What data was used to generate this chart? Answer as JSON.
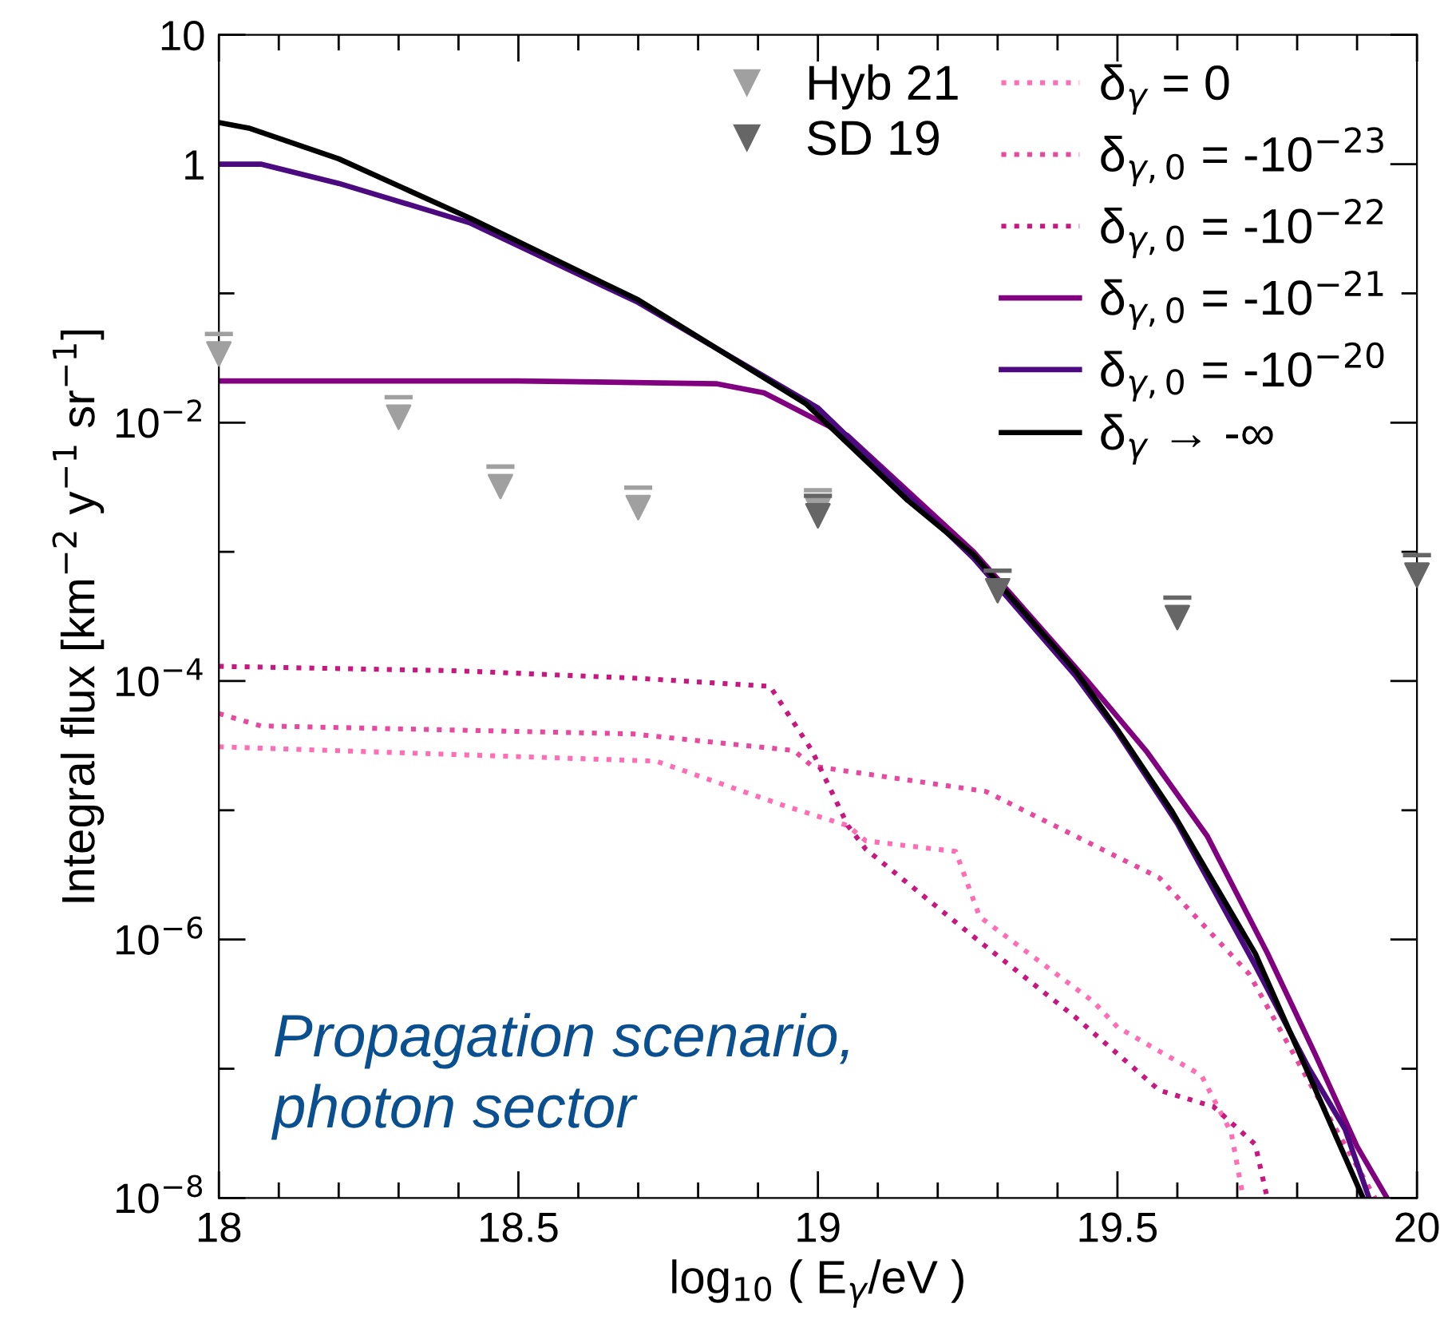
{
  "chart_data": {
    "type": "line",
    "xlabel": "log$_{10}$ ( E$_{γ}$/eV )",
    "ylabel": "Integral flux [km$^{−2}$ y$^{−1}$ sr$^{−1}$]",
    "annotations": [
      "Propagation scenario,\nphoton sector"
    ],
    "log": "y",
    "xlim": [
      18,
      20
    ],
    "xticks": [
      18,
      {
        "value": 18.1,
        "label": null
      },
      {
        "value": 18.2,
        "label": null
      },
      {
        "value": 18.3,
        "label": null
      },
      {
        "value": 18.4,
        "label": null
      },
      18.5,
      {
        "value": 18.6,
        "label": null
      },
      {
        "value": 18.7,
        "label": null
      },
      {
        "value": 18.8,
        "label": null
      },
      {
        "value": 18.9,
        "label": null
      },
      19,
      {
        "value": 19.1,
        "label": null
      },
      {
        "value": 19.2,
        "label": null
      },
      {
        "value": 19.3,
        "label": null
      },
      {
        "value": 19.4,
        "label": null
      },
      19.5,
      {
        "value": 19.6,
        "label": null
      },
      {
        "value": 19.7,
        "label": null
      },
      {
        "value": 19.8,
        "label": null
      },
      {
        "value": 19.9,
        "label": null
      },
      20
    ],
    "ylim": [
      1e-08,
      10
    ],
    "yticks": [
      {
        "value": 1e-08,
        "label": "10$^{−8}$"
      },
      {
        "value": 1e-07,
        "label": null
      },
      {
        "value": 1e-06,
        "label": "10$^{−6}$"
      },
      {
        "value": 1e-05,
        "label": null
      },
      {
        "value": 0.0001,
        "label": "10$^{−4}$"
      },
      {
        "value": 0.001,
        "label": null
      },
      {
        "value": 0.01,
        "label": "10$^{−2}$"
      },
      {
        "value": 0.1,
        "label": null
      },
      1,
      10
    ],
    "grid": false,
    "legend": "top right",
    "series": [
      {
        "name": "Hyb 21",
        "type": "scatter",
        "marker": "triangle",
        "color": "#a0a0a0",
        "x": [
          18,
          18.3,
          18.47,
          18.7,
          19.0
        ],
        "values": [
          0.034,
          0.011,
          0.0032,
          0.0022,
          0.0021
        ]
      },
      {
        "name": "SD 19",
        "type": "scatter",
        "marker": "triangle",
        "color": "#666666",
        "x": [
          19.0,
          19.3,
          19.6,
          20.0
        ],
        "values": [
          0.0019,
          0.0005,
          0.00031,
          0.00066
        ]
      },
      {
        "name": "δ$_{γ}$ = 0",
        "line_style": "dotted",
        "color": "#ff6eb4",
        "x": [
          18,
          18.73,
          18.94,
          19.05,
          19.08,
          19.23,
          19.27,
          19.46,
          19.5,
          19.64,
          19.69,
          19.71
        ],
        "values": [
          3.1e-05,
          2.4e-05,
          1.1e-05,
          7.6e-06,
          5.8e-06,
          4.8e-06,
          1.5e-06,
          3.3e-07,
          2.1e-07,
          8.9e-08,
          3.2e-08,
          1e-08
        ]
      },
      {
        "name": "δ$_{γ,0}$ = -10$^{−23}$",
        "line_style": "dotted",
        "color": "#e8489e",
        "x": [
          18,
          18.07,
          18.69,
          18.96,
          18.99,
          19.28,
          19.57,
          19.72,
          19.82,
          19.93
        ],
        "values": [
          5.6e-05,
          4.5e-05,
          3.9e-05,
          2.9e-05,
          2.2e-05,
          1.4e-05,
          3e-06,
          5.4e-07,
          7.9e-08,
          1e-08
        ]
      },
      {
        "name": "δ$_{γ,0}$ = -10$^{−22}$",
        "line_style": "dotted",
        "color": "#c8177f",
        "x": [
          18,
          18.4,
          18.7,
          18.92,
          18.99,
          19.05,
          19.08,
          19.26,
          19.43,
          19.57,
          19.66,
          19.73,
          19.75
        ],
        "values": [
          0.00013,
          0.00012,
          0.000105,
          9.1e-05,
          2.9e-05,
          7.6e-06,
          5e-06,
          1.05e-06,
          2.5e-07,
          6.8e-08,
          5.1e-08,
          2.6e-08,
          1e-08
        ]
      },
      {
        "name": "δ$_{γ,0}$ = -10$^{−21}$",
        "line_style": "solid",
        "color": "#800080",
        "x": [
          18,
          18.5,
          18.83,
          18.91,
          19.05,
          19.26,
          19.45,
          19.55,
          19.65,
          19.75,
          19.83,
          19.9,
          19.95
        ],
        "values": [
          0.021,
          0.021,
          0.02,
          0.017,
          0.0079,
          0.001,
          0.0001,
          2.8e-05,
          6.3e-06,
          7.9e-07,
          1.3e-07,
          2.5e-08,
          1e-08
        ]
      },
      {
        "name": "δ$_{γ,0}$ = -10$^{−20}$",
        "line_style": "solid",
        "color": "#4b0a7f",
        "x": [
          18,
          18.07,
          18.2,
          18.42,
          18.7,
          19.0,
          19.26,
          19.43,
          19.5,
          19.6,
          19.73,
          19.82,
          19.88,
          19.92
        ],
        "values": [
          1.0,
          1.0,
          0.71,
          0.35,
          0.085,
          0.013,
          0.00089,
          0.00011,
          4e-05,
          7.9e-06,
          6.3e-07,
          1e-07,
          3.4e-08,
          1e-08
        ]
      },
      {
        "name": "δ$_{γ}$ → -∞",
        "line_style": "solid",
        "color": "#000000",
        "x": [
          18,
          18.05,
          18.2,
          18.42,
          18.7,
          18.98,
          19.15,
          19.26,
          19.43,
          19.5,
          19.59,
          19.73,
          19.82,
          19.91
        ],
        "values": [
          2.1,
          1.9,
          1.1,
          0.38,
          0.089,
          0.014,
          0.0025,
          0.00095,
          0.00012,
          4.2e-05,
          1e-05,
          7.8e-07,
          8.9e-08,
          1e-08
        ]
      }
    ]
  }
}
